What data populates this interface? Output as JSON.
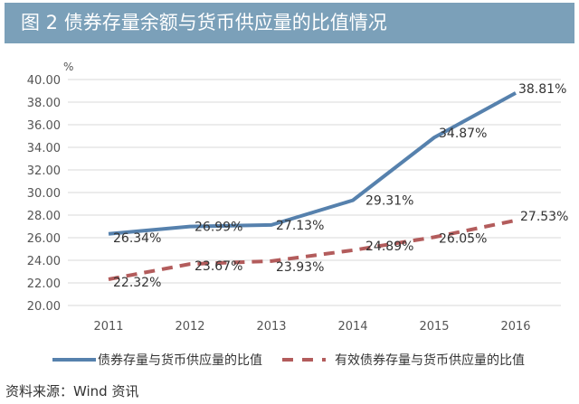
{
  "title": "图 2  债券存量余额与货币供应量的比值情况",
  "source": "资料来源：Wind 资讯",
  "chart_data": {
    "type": "line",
    "title": "图 2  债券存量余额与货币供应量的比值情况",
    "ylabel": "%",
    "ylim": [
      20,
      40
    ],
    "yticks": [
      "20.00",
      "22.00",
      "24.00",
      "26.00",
      "28.00",
      "30.00",
      "32.00",
      "34.00",
      "36.00",
      "38.00",
      "40.00"
    ],
    "categories": [
      "2011",
      "2012",
      "2013",
      "2014",
      "2015",
      "2016"
    ],
    "grid": true,
    "legend": "bottom",
    "series": [
      {
        "name": "债券存量与货币供应量的比值",
        "values": [
          26.34,
          26.99,
          27.13,
          29.31,
          34.87,
          38.81
        ],
        "labels": [
          "26.34%",
          "26.99%",
          "27.13%",
          "29.31%",
          "34.87%",
          "38.81%"
        ],
        "color": "#5681ad",
        "style": "solid"
      },
      {
        "name": "有效债券存量与货币供应量的比值",
        "values": [
          22.32,
          23.67,
          23.93,
          24.89,
          26.05,
          27.53
        ],
        "labels": [
          "22.32%",
          "23.67%",
          "23.93%",
          "24.89%",
          "26.05%",
          "27.53%"
        ],
        "color": "#b35c5c",
        "style": "dashed"
      }
    ]
  }
}
